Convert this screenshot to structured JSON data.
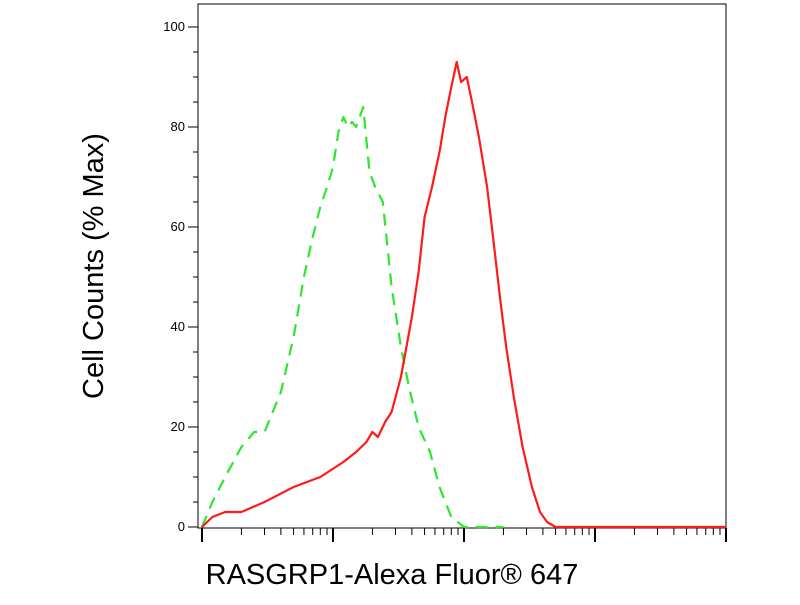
{
  "chart_data": {
    "type": "line",
    "title": "",
    "xlabel": "RASGRP1-Alexa Fluor® 647",
    "ylabel": "Cell Counts (% Max)",
    "x_scale": "log",
    "xlim": [
      1,
      10000
    ],
    "ylim": [
      0,
      100
    ],
    "yticks": [
      "0",
      "20",
      "40",
      "60",
      "80",
      "100"
    ],
    "grid": false,
    "legend": "none",
    "series": [
      {
        "style": "dashed",
        "color": "#2ee62e",
        "points": [
          [
            1,
            0
          ],
          [
            1.2,
            5
          ],
          [
            1.5,
            10
          ],
          [
            2,
            16
          ],
          [
            2.5,
            19
          ],
          [
            3,
            19
          ],
          [
            4,
            27
          ],
          [
            5,
            38
          ],
          [
            6,
            50
          ],
          [
            7,
            58
          ],
          [
            8,
            64
          ],
          [
            9,
            68
          ],
          [
            10,
            72
          ],
          [
            11,
            79
          ],
          [
            12,
            82
          ],
          [
            13,
            80
          ],
          [
            14,
            81
          ],
          [
            15,
            80
          ],
          [
            17,
            84
          ],
          [
            19,
            71
          ],
          [
            21,
            68
          ],
          [
            24,
            65
          ],
          [
            28,
            48
          ],
          [
            33,
            36
          ],
          [
            38,
            28
          ],
          [
            45,
            20
          ],
          [
            55,
            15
          ],
          [
            65,
            8
          ],
          [
            80,
            2
          ],
          [
            100,
            0
          ],
          [
            200,
            0
          ]
        ]
      },
      {
        "style": "solid",
        "color": "#ff1a1a",
        "points": [
          [
            1,
            0
          ],
          [
            1.2,
            2
          ],
          [
            1.5,
            3
          ],
          [
            2,
            3
          ],
          [
            3,
            5
          ],
          [
            5,
            8
          ],
          [
            8,
            10
          ],
          [
            12,
            13
          ],
          [
            15,
            15
          ],
          [
            18,
            17
          ],
          [
            20,
            19
          ],
          [
            22,
            18
          ],
          [
            25,
            21
          ],
          [
            28,
            23
          ],
          [
            33,
            30
          ],
          [
            40,
            42
          ],
          [
            45,
            51
          ],
          [
            50,
            62
          ],
          [
            57,
            68
          ],
          [
            65,
            75
          ],
          [
            72,
            82
          ],
          [
            80,
            88
          ],
          [
            88,
            93
          ],
          [
            95,
            89
          ],
          [
            105,
            90
          ],
          [
            115,
            85
          ],
          [
            130,
            78
          ],
          [
            150,
            68
          ],
          [
            170,
            56
          ],
          [
            190,
            45
          ],
          [
            210,
            36
          ],
          [
            240,
            26
          ],
          [
            280,
            16
          ],
          [
            330,
            8
          ],
          [
            380,
            3
          ],
          [
            430,
            1
          ],
          [
            500,
            0
          ],
          [
            10000,
            0
          ]
        ]
      }
    ]
  }
}
